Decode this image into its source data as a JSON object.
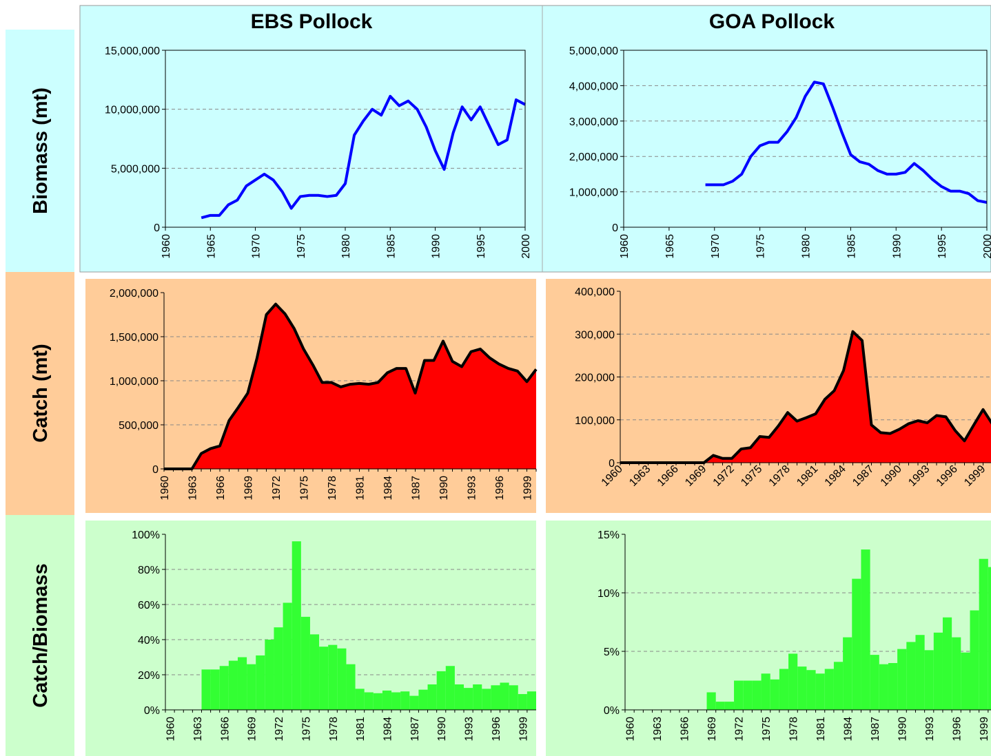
{
  "column_titles": [
    "EBS Pollock",
    "GOA Pollock"
  ],
  "row_labels": [
    "Biomass (mt)",
    "Catch (mt)",
    "Catch/Biomass"
  ],
  "chart_data": [
    {
      "type": "line",
      "color": "#0000ff",
      "grid": true,
      "x": [
        1964,
        1965,
        1966,
        1967,
        1968,
        1969,
        1970,
        1971,
        1972,
        1973,
        1974,
        1975,
        1976,
        1977,
        1978,
        1979,
        1980,
        1981,
        1982,
        1983,
        1984,
        1985,
        1986,
        1987,
        1988,
        1989,
        1990,
        1991,
        1992,
        1993,
        1994,
        1995,
        1996,
        1997,
        1998,
        1999,
        2000
      ],
      "values": [
        800000,
        1000000,
        1000000,
        1900000,
        2300000,
        3500000,
        4000000,
        4500000,
        4000000,
        3000000,
        1600000,
        2600000,
        2700000,
        2700000,
        2600000,
        2700000,
        3700000,
        7800000,
        9000000,
        10000000,
        9500000,
        11100000,
        10300000,
        10700000,
        10000000,
        8500000,
        6500000,
        4900000,
        8000000,
        10200000,
        9100000,
        10200000,
        8600000,
        7000000,
        7400000,
        10800000,
        10400000
      ],
      "xlim": [
        1960,
        2000
      ],
      "xticks": [
        1960,
        1965,
        1970,
        1975,
        1980,
        1985,
        1990,
        1995,
        2000
      ],
      "ylim": [
        0,
        15000000
      ],
      "yticks": [
        0,
        {
          "value": 5000000,
          "label": "5,000,000"
        },
        {
          "value": 10000000,
          "label": "10,000,000"
        },
        {
          "value": 15000000,
          "label": "15,000,000"
        }
      ]
    },
    {
      "type": "line",
      "color": "#0000ff",
      "grid": true,
      "x": [
        1969,
        1970,
        1971,
        1972,
        1973,
        1974,
        1975,
        1976,
        1977,
        1978,
        1979,
        1980,
        1981,
        1982,
        1983,
        1984,
        1985,
        1986,
        1987,
        1988,
        1989,
        1990,
        1991,
        1992,
        1993,
        1994,
        1995,
        1996,
        1997,
        1998,
        1999,
        2000
      ],
      "values": [
        1200000,
        1200000,
        1200000,
        1300000,
        1500000,
        2000000,
        2300000,
        2400000,
        2400000,
        2700000,
        3100000,
        3700000,
        4100000,
        4050000,
        3400000,
        2700000,
        2050000,
        1850000,
        1780000,
        1600000,
        1500000,
        1500000,
        1550000,
        1800000,
        1600000,
        1350000,
        1150000,
        1020000,
        1020000,
        950000,
        750000,
        700000
      ],
      "xlim": [
        1960,
        2000
      ],
      "xticks": [
        1960,
        1965,
        1970,
        1975,
        1980,
        1985,
        1990,
        1995,
        2000
      ],
      "ylim": [
        0,
        5000000
      ],
      "yticks": [
        0,
        {
          "value": 1000000,
          "label": "1,000,000"
        },
        {
          "value": 2000000,
          "label": "2,000,000"
        },
        {
          "value": 3000000,
          "label": "3,000,000"
        },
        {
          "value": 4000000,
          "label": "4,000,000"
        },
        {
          "value": 5000000,
          "label": "5,000,000"
        }
      ]
    },
    {
      "type": "area",
      "color": "#ff0000",
      "edge_color": "#000000",
      "grid": true,
      "categories": [
        "1960",
        null,
        null,
        "1963",
        null,
        null,
        "1966",
        null,
        null,
        "1969",
        null,
        null,
        "1972",
        null,
        null,
        "1975",
        null,
        null,
        "1978",
        null,
        null,
        "1981",
        null,
        null,
        "1984",
        null,
        null,
        "1987",
        null,
        null,
        "1990",
        null,
        null,
        "1993",
        null,
        null,
        "1996",
        null,
        null,
        "1999",
        null
      ],
      "values": [
        0,
        0,
        0,
        0,
        175000,
        230000,
        260000,
        550000,
        700000,
        860000,
        1260000,
        1750000,
        1870000,
        1760000,
        1590000,
        1360000,
        1180000,
        980000,
        980000,
        930000,
        960000,
        970000,
        960000,
        980000,
        1090000,
        1140000,
        1140000,
        860000,
        1230000,
        1230000,
        1450000,
        1220000,
        1160000,
        1330000,
        1360000,
        1260000,
        1190000,
        1140000,
        1110000,
        990000,
        1130000
      ],
      "ylim": [
        0,
        2000000
      ],
      "yticks": [
        0,
        {
          "value": 500000,
          "label": "500,000"
        },
        {
          "value": 1000000,
          "label": "1,000,000"
        },
        {
          "value": 1500000,
          "label": "1,500,000"
        },
        {
          "value": 2000000,
          "label": "2,000,000"
        }
      ]
    },
    {
      "type": "area",
      "color": "#ff0000",
      "edge_color": "#000000",
      "grid": true,
      "categories": [
        "1960",
        null,
        null,
        "1963",
        null,
        null,
        "1966",
        null,
        null,
        "1969",
        null,
        null,
        "1972",
        null,
        null,
        "1975",
        null,
        null,
        "1978",
        null,
        null,
        "1981",
        null,
        null,
        "1984",
        null,
        null,
        "1987",
        null,
        null,
        "1990",
        null,
        null,
        "1993",
        null,
        null,
        "1996",
        null,
        null,
        "1999",
        null
      ],
      "values": [
        0,
        0,
        0,
        0,
        0,
        0,
        0,
        0,
        0,
        0,
        17000,
        10000,
        10000,
        32000,
        35000,
        61000,
        59000,
        86000,
        117000,
        97000,
        105000,
        114000,
        148000,
        168000,
        215000,
        306000,
        285000,
        88000,
        70000,
        68000,
        78000,
        91000,
        98000,
        93000,
        110000,
        107000,
        75000,
        51000,
        88000,
        124000,
        90000
      ],
      "ylim": [
        0,
        400000
      ],
      "yticks": [
        0,
        {
          "value": 100000,
          "label": "100,000"
        },
        {
          "value": 200000,
          "label": "200,000"
        },
        {
          "value": 300000,
          "label": "300,000"
        },
        {
          "value": 400000,
          "label": "400,000"
        }
      ]
    },
    {
      "type": "bar",
      "color": "#33ff33",
      "grid": true,
      "categories": [
        "1960",
        null,
        null,
        "1963",
        null,
        null,
        "1966",
        null,
        null,
        "1969",
        null,
        null,
        "1972",
        null,
        null,
        "1975",
        null,
        null,
        "1978",
        null,
        null,
        "1981",
        null,
        null,
        "1984",
        null,
        null,
        "1987",
        null,
        null,
        "1990",
        null,
        null,
        "1993",
        null,
        null,
        "1996",
        null,
        null,
        "1999",
        null
      ],
      "values": [
        null,
        null,
        null,
        null,
        23,
        23,
        25,
        28,
        30,
        26,
        31,
        40,
        47,
        61,
        96,
        53,
        43,
        36,
        37,
        35,
        26,
        12,
        10,
        9.5,
        11,
        10,
        10.5,
        8,
        11.5,
        14.5,
        22,
        25,
        14.5,
        12.5,
        14.5,
        12,
        14,
        15.5,
        14,
        9,
        10.5
      ],
      "ylim": [
        0,
        100
      ],
      "yticks": [
        {
          "value": 0,
          "label": "0%"
        },
        {
          "value": 20,
          "label": "20%"
        },
        {
          "value": 40,
          "label": "40%"
        },
        {
          "value": 60,
          "label": "60%"
        },
        {
          "value": 80,
          "label": "80%"
        },
        {
          "value": 100,
          "label": "100%"
        }
      ]
    },
    {
      "type": "bar",
      "color": "#33ff33",
      "grid": true,
      "categories": [
        "1960",
        null,
        null,
        "1963",
        null,
        null,
        "1966",
        null,
        null,
        "1969",
        null,
        null,
        "1972",
        null,
        null,
        "1975",
        null,
        null,
        "1978",
        null,
        null,
        "1981",
        null,
        null,
        "1984",
        null,
        null,
        "1987",
        null,
        null,
        "1990",
        null,
        null,
        "1993",
        null,
        null,
        "1996",
        null,
        null,
        "1999",
        null
      ],
      "values": [
        null,
        null,
        null,
        null,
        null,
        null,
        null,
        null,
        null,
        1.5,
        0.7,
        0.7,
        2.5,
        2.5,
        2.5,
        3.1,
        2.6,
        3.5,
        4.8,
        3.7,
        3.4,
        3.1,
        3.5,
        4.1,
        6.2,
        11.2,
        13.7,
        4.7,
        3.9,
        4.0,
        5.2,
        5.8,
        6.4,
        5.1,
        6.6,
        7.9,
        6.2,
        4.9,
        8.5,
        12.9,
        12.2
      ],
      "ylim": [
        0,
        15
      ],
      "yticks": [
        {
          "value": 0,
          "label": "0%"
        },
        {
          "value": 5,
          "label": "5%"
        },
        {
          "value": 10,
          "label": "10%"
        },
        {
          "value": 15,
          "label": "15%"
        }
      ]
    }
  ]
}
